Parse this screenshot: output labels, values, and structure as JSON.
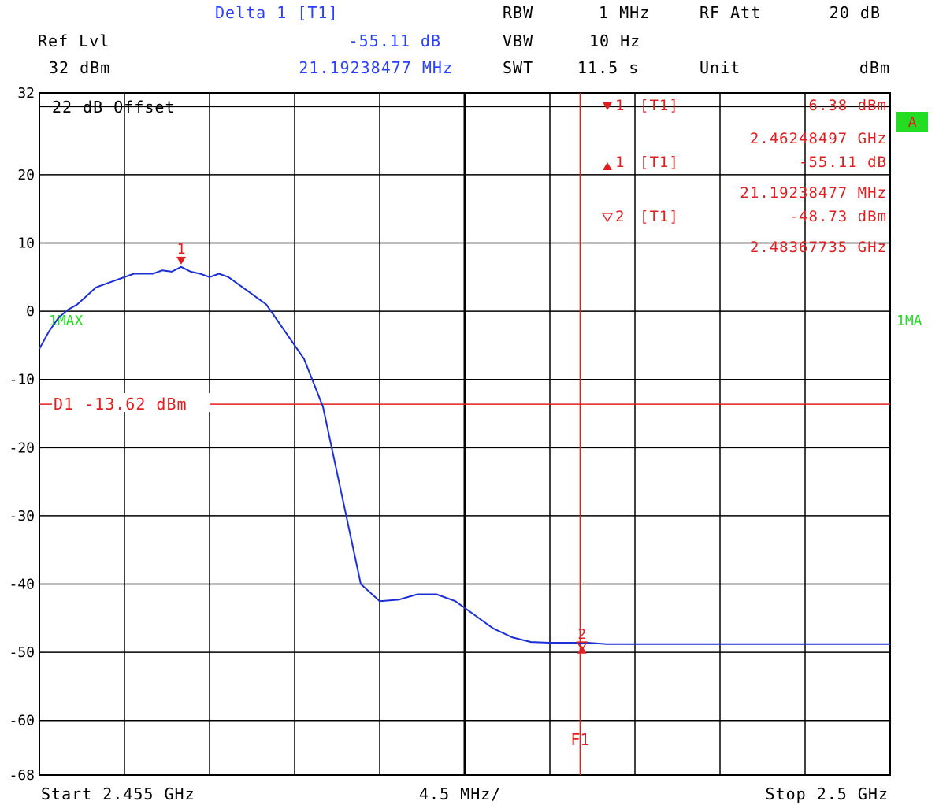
{
  "header": {
    "delta_label": "Delta 1 [T1]",
    "delta_value": "-55.11 dB",
    "delta_freq": "21.19238477 MHz",
    "ref_lvl_label": "Ref Lvl",
    "ref_lvl_value": "32 dBm",
    "rbw_label": "RBW",
    "rbw_value": "1 MHz",
    "vbw_label": "VBW",
    "vbw_value": "10 Hz",
    "swt_label": "SWT",
    "swt_value": "11.5 s",
    "rf_att_label": "RF Att",
    "rf_att_value": "20 dB",
    "unit_label": "Unit",
    "unit_value": "dBm"
  },
  "footer": {
    "start": "Start 2.455 GHz",
    "span_per_div": "4.5 MHz/",
    "stop": "Stop 2.5 GHz"
  },
  "colors": {
    "trace": "#1a2fd6",
    "marker": "#e02020",
    "label_green": "#22dd22",
    "badge_bg": "#22dd22",
    "grid": "#000000"
  },
  "chart_data": {
    "type": "line",
    "xlabel": "",
    "ylabel": "",
    "xlim": [
      2455,
      2500
    ],
    "x_unit": "MHz",
    "ylim": [
      -68,
      32
    ],
    "y_unit": "dBm",
    "y_ticks": [
      "32",
      "20",
      "10",
      "0",
      "-10",
      "-20",
      "-30",
      "-40",
      "-50",
      "-60",
      "-68"
    ],
    "y_tick_values": [
      32,
      20,
      10,
      0,
      -10,
      -20,
      -30,
      -40,
      -50,
      -60,
      -68
    ],
    "grid": true,
    "offset_text": "22 dB Offset",
    "trace_label_left": "1MAX",
    "trace_label_right": "1MA",
    "badge": "A",
    "display_line": {
      "label": "D1 -13.62 dBm",
      "value": -13.62
    },
    "freq_line": {
      "label": "F1",
      "x": 2483.6
    },
    "markers": [
      {
        "label": "1",
        "x": 2462.5,
        "y": 6.38,
        "symbol": "▼"
      },
      {
        "label": "2",
        "x": 2483.7,
        "y": -48.73,
        "symbol": "▽"
      },
      {
        "label": "",
        "x": 2483.7,
        "y": -49.5,
        "symbol": "▲"
      }
    ],
    "marker_table": [
      {
        "symbol": "▼",
        "id": "1",
        "tag": "[T1]",
        "value": "6.38 dBm",
        "freq": "2.46248497 GHz"
      },
      {
        "symbol": "▲",
        "id": "1",
        "tag": "[T1]",
        "value": "-55.11 dB",
        "freq": "21.19238477 MHz"
      },
      {
        "symbol": "▽",
        "id": "2",
        "tag": "[T1]",
        "value": "-48.73 dBm",
        "freq": "2.48367735 GHz"
      }
    ],
    "series": [
      {
        "x": [
          2455.0,
          2455.5,
          2456.0,
          2456.5,
          2457.0,
          2458.0,
          2459.0,
          2460.0,
          2461.0,
          2461.5,
          2462.0,
          2462.5,
          2463.0,
          2463.5,
          2464.0,
          2464.5,
          2465.0,
          2466.0,
          2467.0,
          2468.0,
          2469.0,
          2470.0,
          2471.0,
          2472.0,
          2473.0,
          2474.0,
          2475.0,
          2476.0,
          2477.0,
          2478.0,
          2479.0,
          2480.0,
          2481.0,
          2482.0,
          2483.0,
          2484.0,
          2485.0,
          2487.0,
          2490.0,
          2495.0,
          2500.0
        ],
        "y": [
          -5.5,
          -3.0,
          -1.0,
          0.2,
          1.0,
          3.5,
          4.5,
          5.5,
          5.5,
          6.0,
          5.8,
          6.5,
          5.8,
          5.5,
          5.0,
          5.5,
          5.0,
          3.0,
          1.0,
          -3.0,
          -7.0,
          -14.0,
          -27.0,
          -40.0,
          -42.5,
          -42.3,
          -41.5,
          -41.5,
          -42.5,
          -44.5,
          -46.5,
          -47.8,
          -48.5,
          -48.6,
          -48.6,
          -48.6,
          -48.8,
          -48.8,
          -48.8,
          -48.8,
          -48.8
        ]
      }
    ]
  }
}
